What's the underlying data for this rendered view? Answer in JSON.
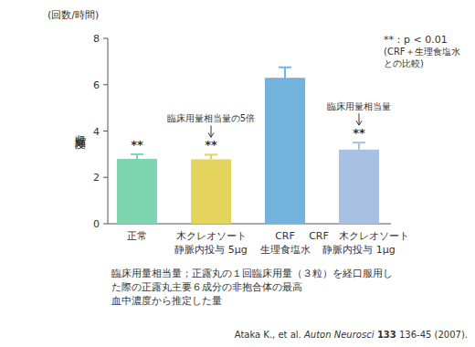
{
  "chart_data": {
    "type": "bar",
    "y_unit": "(回数/時間)",
    "y_label": "収縮頻度",
    "categories": [
      "正常\n ",
      "木クレオソート\n静脈内投与 5μg",
      "CRF\n生理食塩水",
      "CRF　木クレオソート\n静脈内投与 1μg"
    ],
    "values": [
      2.8,
      2.78,
      6.3,
      3.2
    ],
    "errors": [
      0.2,
      0.2,
      0.45,
      0.3
    ],
    "colors": [
      "#7dd6b0",
      "#e4d35c",
      "#74b3de",
      "#a8c1e2"
    ],
    "significance": [
      "**",
      "**",
      null,
      "**"
    ],
    "annotations": [
      null,
      "臨床用量相当量の5倍",
      null,
      "臨床用量相当量"
    ],
    "significance_note": [
      "**：p < 0.01",
      "(CRF＋生理食塩水",
      "との比較)"
    ],
    "footnote": [
      "臨床用量相当量；正露丸の１回臨床用量（３粒）を経口服用し",
      "た際の正露丸主要６成分の非抱合体の最高",
      "血中濃度から推定した量"
    ],
    "citation": {
      "authors": "Ataka K., et al.",
      "journal": "Auton Neurosci",
      "volume": "133",
      "pages": "136-45 (2007)."
    },
    "ylim": [
      0,
      8
    ],
    "yticks": [
      0,
      2,
      4,
      6,
      8
    ],
    "grid": false
  }
}
